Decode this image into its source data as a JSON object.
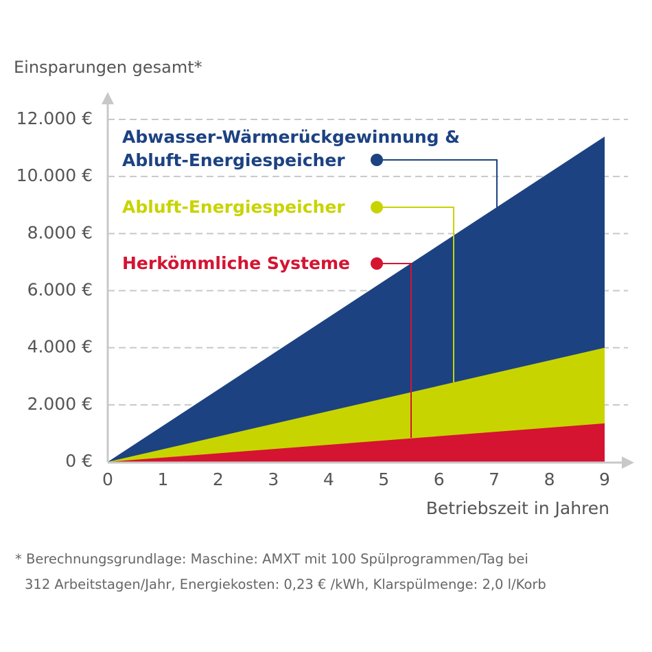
{
  "chart_data": {
    "type": "area",
    "y_label": "Einsparungen gesamt*",
    "x_label": "Betriebszeit in Jahren",
    "x": [
      0,
      9
    ],
    "series": [
      {
        "name": "Abwasser-Wärmerückgewinnung & Abluft-Energiespeicher",
        "color": "#1c4282",
        "values": [
          0,
          11400
        ]
      },
      {
        "name": "Abluft-Energiespeicher",
        "color": "#c8d400",
        "values": [
          0,
          4000
        ]
      },
      {
        "name": "Herkömmliche Systeme",
        "color": "#d41431",
        "values": [
          0,
          1350
        ]
      }
    ],
    "xlim": [
      0,
      9
    ],
    "xticks": [
      0,
      1,
      2,
      3,
      4,
      5,
      6,
      7,
      8,
      9
    ],
    "ylim": [
      0,
      12000
    ],
    "yticks": [
      {
        "value": 0,
        "label": "0 €"
      },
      {
        "value": 2000,
        "label": "2.000 €"
      },
      {
        "value": 4000,
        "label": "4.000 €"
      },
      {
        "value": 6000,
        "label": "6.000 €"
      },
      {
        "value": 8000,
        "label": "8.000 €"
      },
      {
        "value": 10000,
        "label": "10.000 €"
      },
      {
        "value": 12000,
        "label": "12.000 €"
      }
    ],
    "grid": true,
    "footnote": [
      "* Berechnungsgrundlage: Maschine: AMXT mit 100 Spülprogrammen/Tag bei",
      "312 Arbeitstagen/Jahr, Energiekosten: 0,23 € /kWh, Klarspülmenge: 2,0 l/Korb"
    ]
  }
}
